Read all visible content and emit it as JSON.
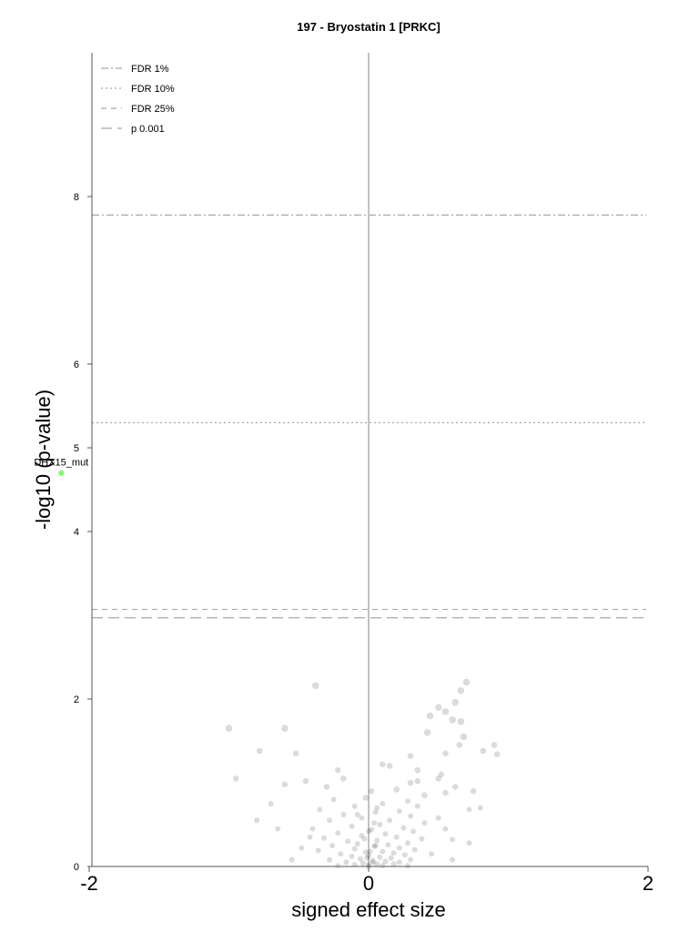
{
  "chart_data": {
    "type": "scatter",
    "title": "197 - Bryostatin 1 [PRKC]",
    "xlabel": "signed effect size",
    "ylabel": "-log10 (p-value)",
    "xlim": [
      -4,
      4
    ],
    "ylim": [
      0,
      9.6
    ],
    "xticks": [
      "-2",
      "0",
      "2"
    ],
    "yticks": [
      "0",
      "2",
      "4",
      "5",
      "6",
      "8"
    ],
    "thresholds": [
      {
        "name": "FDR 1%",
        "y": 7.78
      },
      {
        "name": "FDR 10%",
        "y": 5.3
      },
      {
        "name": "FDR 25%",
        "y": 3.07
      },
      {
        "name": "p 0.001",
        "y": 2.97
      }
    ],
    "legend_position": "top-left",
    "colors": {
      "threshold": "#a8a8a8",
      "zero_line": "#c2c2c2",
      "points": "#000000",
      "highlight": "#7cfc6a"
    },
    "highlight": {
      "label": "DHX15_mut",
      "x": -2.2,
      "y": 4.7
    },
    "points": [
      [
        -0.38,
        2.16
      ],
      [
        0.7,
        2.2
      ],
      [
        0.66,
        2.1
      ],
      [
        0.62,
        1.96
      ],
      [
        0.5,
        1.9
      ],
      [
        0.55,
        1.85
      ],
      [
        0.44,
        1.8
      ],
      [
        0.6,
        1.75
      ],
      [
        0.66,
        1.73
      ],
      [
        -1.0,
        1.65
      ],
      [
        -0.6,
        1.65
      ],
      [
        0.42,
        1.6
      ],
      [
        0.68,
        1.55
      ],
      [
        0.9,
        1.45
      ],
      [
        0.65,
        1.45
      ],
      [
        0.82,
        1.38
      ],
      [
        -0.78,
        1.38
      ],
      [
        0.92,
        1.34
      ],
      [
        0.55,
        1.35
      ],
      [
        -0.52,
        1.35
      ],
      [
        0.3,
        1.32
      ],
      [
        0.15,
        1.2
      ],
      [
        0.35,
        1.15
      ],
      [
        -0.22,
        1.15
      ],
      [
        0.52,
        1.1
      ],
      [
        -0.18,
        1.05
      ],
      [
        0.5,
        1.05
      ],
      [
        -0.45,
        1.02
      ],
      [
        0.35,
        1.02
      ],
      [
        -0.6,
        0.98
      ],
      [
        0.75,
        0.9
      ],
      [
        -0.95,
        1.05
      ],
      [
        0.62,
        0.95
      ],
      [
        0.55,
        0.88
      ],
      [
        -0.7,
        0.75
      ],
      [
        -0.8,
        0.55
      ],
      [
        0.72,
        0.68
      ],
      [
        0.8,
        0.7
      ],
      [
        0.5,
        0.58
      ],
      [
        -0.65,
        0.45
      ],
      [
        0.55,
        0.45
      ],
      [
        0.72,
        0.28
      ],
      [
        0.6,
        0.32
      ],
      [
        -0.48,
        0.22
      ],
      [
        -0.55,
        0.08
      ],
      [
        0.45,
        0.15
      ],
      [
        0.6,
        0.08
      ],
      [
        -0.42,
        0.35
      ],
      [
        0.1,
        1.22
      ],
      [
        0.3,
        1.0
      ],
      [
        -0.3,
        0.95
      ],
      [
        0.2,
        0.92
      ],
      [
        0.4,
        0.85
      ],
      [
        -0.25,
        0.8
      ],
      [
        0.28,
        0.78
      ],
      [
        0.1,
        0.75
      ],
      [
        -0.1,
        0.72
      ],
      [
        0.35,
        0.72
      ],
      [
        -0.35,
        0.68
      ],
      [
        0.22,
        0.66
      ],
      [
        0.05,
        0.65
      ],
      [
        -0.18,
        0.62
      ],
      [
        0.3,
        0.6
      ],
      [
        -0.05,
        0.58
      ],
      [
        0.15,
        0.55
      ],
      [
        -0.28,
        0.55
      ],
      [
        0.4,
        0.52
      ],
      [
        0.08,
        0.5
      ],
      [
        -0.12,
        0.48
      ],
      [
        0.25,
        0.46
      ],
      [
        -0.4,
        0.45
      ],
      [
        0.02,
        0.44
      ],
      [
        0.32,
        0.42
      ],
      [
        -0.22,
        0.4
      ],
      [
        0.12,
        0.39
      ],
      [
        -0.05,
        0.37
      ],
      [
        0.2,
        0.35
      ],
      [
        -0.32,
        0.34
      ],
      [
        0.38,
        0.33
      ],
      [
        0.06,
        0.31
      ],
      [
        -0.15,
        0.3
      ],
      [
        0.28,
        0.28
      ],
      [
        -0.08,
        0.27
      ],
      [
        0.14,
        0.26
      ],
      [
        -0.26,
        0.25
      ],
      [
        0.04,
        0.24
      ],
      [
        0.22,
        0.22
      ],
      [
        -0.1,
        0.21
      ],
      [
        0.33,
        0.2
      ],
      [
        -0.36,
        0.19
      ],
      [
        0.1,
        0.18
      ],
      [
        -0.02,
        0.17
      ],
      [
        0.18,
        0.16
      ],
      [
        -0.2,
        0.15
      ],
      [
        0.26,
        0.14
      ],
      [
        0.0,
        0.13
      ],
      [
        -0.12,
        0.12
      ],
      [
        0.08,
        0.11
      ],
      [
        0.16,
        0.1
      ],
      [
        -0.06,
        0.09
      ],
      [
        0.3,
        0.08
      ],
      [
        -0.28,
        0.08
      ],
      [
        0.03,
        0.07
      ],
      [
        0.12,
        0.06
      ],
      [
        -0.16,
        0.05
      ],
      [
        0.22,
        0.05
      ],
      [
        -0.04,
        0.04
      ],
      [
        0.06,
        0.03
      ],
      [
        0.18,
        0.03
      ],
      [
        -0.1,
        0.02
      ],
      [
        0.0,
        0.02
      ],
      [
        0.1,
        0.01
      ],
      [
        -0.22,
        0.01
      ],
      [
        0.28,
        0.01
      ],
      [
        0.02,
        0.9
      ],
      [
        -0.02,
        0.82
      ],
      [
        0.06,
        0.7
      ],
      [
        -0.08,
        0.62
      ],
      [
        0.04,
        0.52
      ],
      [
        0.0,
        0.42
      ],
      [
        -0.03,
        0.33
      ],
      [
        0.05,
        0.25
      ],
      [
        0.01,
        0.18
      ],
      [
        -0.01,
        0.1
      ],
      [
        0.03,
        0.05
      ],
      [
        0.0,
        0.0
      ]
    ]
  }
}
